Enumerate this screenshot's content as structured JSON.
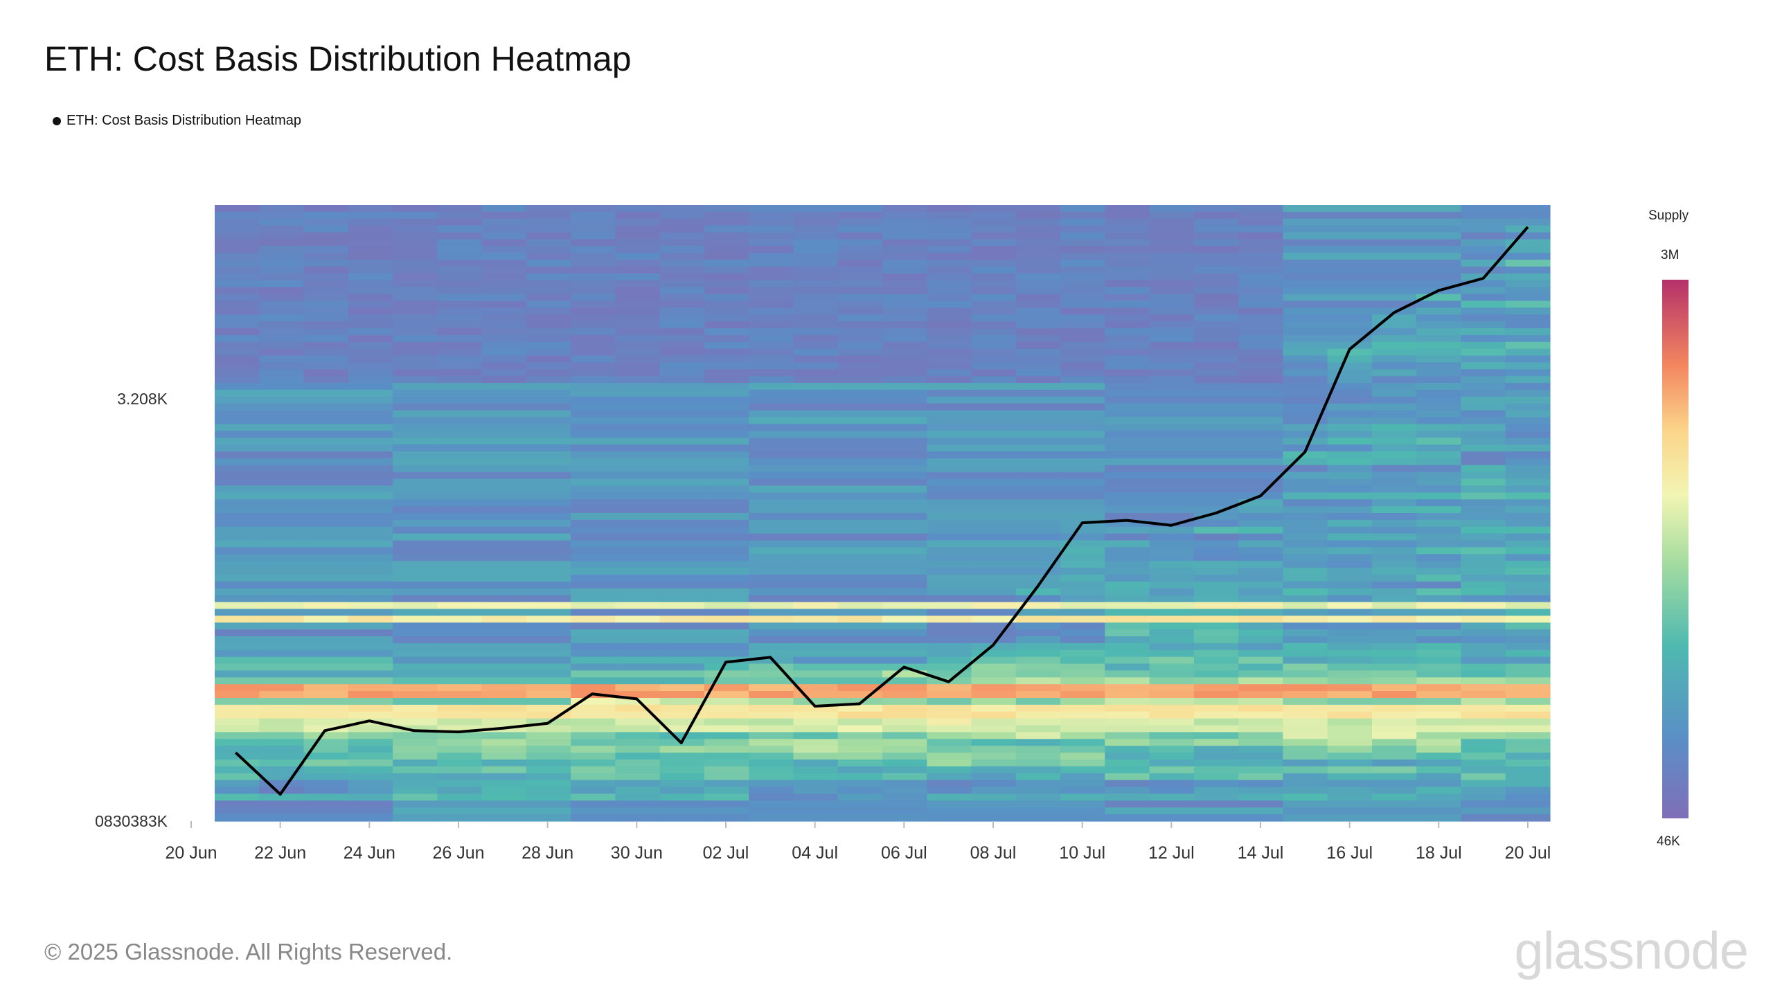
{
  "title": "ETH: Cost Basis Distribution Heatmap",
  "legend_label": "ETH: Cost Basis Distribution Heatmap",
  "footer": "© 2025 Glassnode. All Rights Reserved.",
  "brand": "glassnode",
  "colorbar": {
    "title": "Supply",
    "max_label": "3M",
    "min_label": "46K"
  },
  "chart_data": {
    "type": "heatmap",
    "title": "ETH: Cost Basis Distribution Heatmap",
    "x_ticks": [
      "20 Jun",
      "22 Jun",
      "24 Jun",
      "26 Jun",
      "28 Jun",
      "30 Jun",
      "02 Jul",
      "04 Jul",
      "06 Jul",
      "08 Jul",
      "10 Jul",
      "12 Jul",
      "14 Jul",
      "16 Jul",
      "18 Jul",
      "20 Jul"
    ],
    "y_ticks": [
      "3.208K",
      "0830383K"
    ],
    "colorscale_range": [
      "46K",
      "3M"
    ],
    "price_series": {
      "name": "ETH: Cost Basis Distribution Heatmap",
      "x": [
        "2025-06-21",
        "2025-06-22",
        "2025-06-23",
        "2025-06-24",
        "2025-06-25",
        "2025-06-26",
        "2025-06-27",
        "2025-06-28",
        "2025-06-29",
        "2025-06-30",
        "2025-07-01",
        "2025-07-02",
        "2025-07-03",
        "2025-07-04",
        "2025-07-05",
        "2025-07-06",
        "2025-07-07",
        "2025-07-08",
        "2025-07-09",
        "2025-07-10",
        "2025-07-11",
        "2025-07-12",
        "2025-07-13",
        "2025-07-14",
        "2025-07-15",
        "2025-07-16",
        "2025-07-17",
        "2025-07-18",
        "2025-07-19",
        "2025-07-20"
      ],
      "y": [
        2400,
        2230,
        2490,
        2530,
        2490,
        2485,
        2500,
        2520,
        2640,
        2620,
        2440,
        2770,
        2790,
        2590,
        2600,
        2750,
        2690,
        2840,
        3080,
        3340,
        3350,
        3330,
        3380,
        3450,
        3630,
        4050,
        4200,
        4290,
        4340,
        4550
      ]
    },
    "supply_bands": [
      {
        "price": 3000,
        "level": 0.55
      },
      {
        "price": 2950,
        "level": 0.6
      },
      {
        "price": 2650,
        "level": 0.75
      },
      {
        "price": 2565,
        "level": 0.62
      },
      {
        "price": 2510,
        "level": 0.5
      }
    ]
  }
}
